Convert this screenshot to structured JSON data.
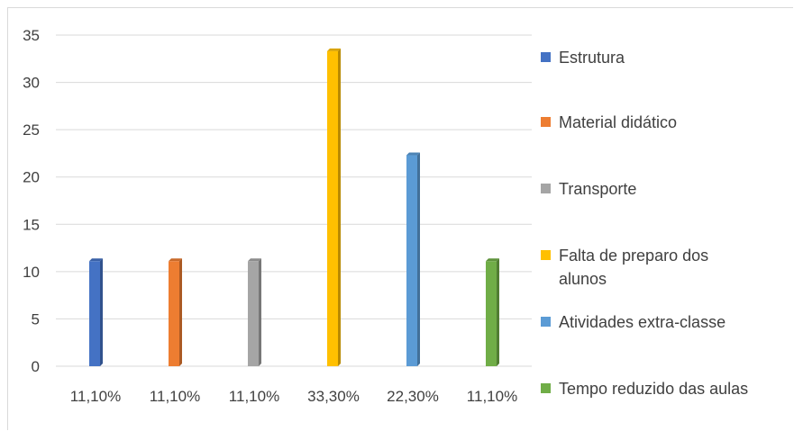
{
  "chart_data": {
    "type": "bar",
    "title": "",
    "xlabel": "",
    "ylabel": "",
    "ylim": [
      0,
      35
    ],
    "yticks": [
      0,
      5,
      10,
      15,
      20,
      25,
      30,
      35
    ],
    "grid": true,
    "legend_position": "right",
    "categories": [
      "11,10%",
      "11,10%",
      "11,10%",
      "33,30%",
      "22,30%",
      "11,10%"
    ],
    "series": [
      {
        "name": "Estrutura",
        "values": [
          11.1,
          null,
          null,
          null,
          null,
          null
        ],
        "color": "#4472C4"
      },
      {
        "name": "Material didático",
        "values": [
          null,
          11.1,
          null,
          null,
          null,
          null
        ],
        "color": "#ED7D31"
      },
      {
        "name": "Transporte",
        "values": [
          null,
          null,
          11.1,
          null,
          null,
          null
        ],
        "color": "#A5A5A5"
      },
      {
        "name": "Falta de preparo dos alunos",
        "values": [
          null,
          null,
          null,
          33.3,
          null,
          null
        ],
        "color": "#FFC000"
      },
      {
        "name": "Atividades extra-classe",
        "values": [
          null,
          null,
          null,
          null,
          22.3,
          null
        ],
        "color": "#5B9BD5"
      },
      {
        "name": "Tempo reduzido das aulas",
        "values": [
          null,
          null,
          null,
          null,
          null,
          11.1
        ],
        "color": "#70AD47"
      }
    ]
  }
}
